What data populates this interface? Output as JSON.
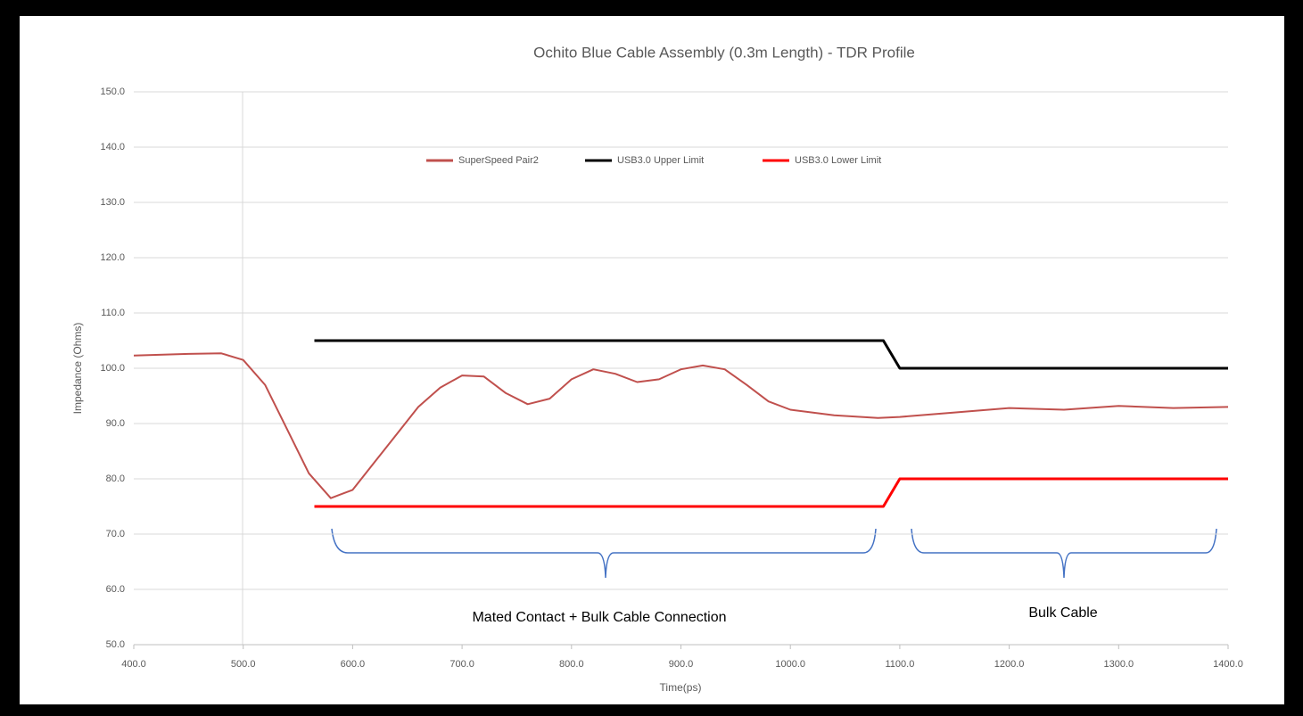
{
  "chart_data": {
    "type": "line",
    "title": "Ochito Blue Cable Assembly (0.3m Length) - TDR Profile",
    "xlabel": "Time(ps)",
    "ylabel": "Impedance (Ohms)",
    "xlim": [
      400,
      1400
    ],
    "ylim": [
      50,
      150
    ],
    "xticks": [
      {
        "value": 400,
        "label": "400.0"
      },
      {
        "value": 500,
        "label": "500.0"
      },
      {
        "value": 600,
        "label": "600.0"
      },
      {
        "value": 700,
        "label": "700.0"
      },
      {
        "value": 800,
        "label": "800.0"
      },
      {
        "value": 900,
        "label": "900.0"
      },
      {
        "value": 1000,
        "label": "1000.0"
      },
      {
        "value": 1100,
        "label": "1100.0"
      },
      {
        "value": 1200,
        "label": "1200.0"
      },
      {
        "value": 1300,
        "label": "1300.0"
      },
      {
        "value": 1400,
        "label": "1400.0"
      }
    ],
    "yticks": [
      {
        "value": 50,
        "label": "50.0"
      },
      {
        "value": 60,
        "label": "60.0"
      },
      {
        "value": 70,
        "label": "70.0"
      },
      {
        "value": 80,
        "label": "80.0"
      },
      {
        "value": 90,
        "label": "90.0"
      },
      {
        "value": 100,
        "label": "100.0"
      },
      {
        "value": 110,
        "label": "110.0"
      },
      {
        "value": 120,
        "label": "120.0"
      },
      {
        "value": 130,
        "label": "130.0"
      },
      {
        "value": 140,
        "label": "140.0"
      },
      {
        "value": 150,
        "label": "150.0"
      }
    ],
    "grid": true,
    "legend": "top",
    "series": [
      {
        "name": "SuperSpeed Pair2",
        "color": "#c0504d",
        "x": [
          400,
          450,
          480,
          500,
          520,
          540,
          560,
          580,
          600,
          620,
          640,
          660,
          680,
          700,
          720,
          740,
          760,
          780,
          800,
          820,
          840,
          860,
          880,
          900,
          920,
          940,
          960,
          980,
          1000,
          1040,
          1080,
          1100,
          1150,
          1200,
          1250,
          1300,
          1350,
          1400
        ],
        "values": [
          102.3,
          102.6,
          102.7,
          101.5,
          97,
          89,
          81,
          76.5,
          78,
          83,
          88,
          93,
          96.5,
          98.7,
          98.5,
          95.5,
          93.5,
          94.5,
          98,
          99.8,
          99,
          97.5,
          98,
          99.8,
          100.5,
          99.8,
          97,
          94,
          92.5,
          91.5,
          91,
          91.2,
          92,
          92.8,
          92.5,
          93.2,
          92.8,
          93
        ]
      },
      {
        "name": "USB3.0 Upper Limit",
        "color": "#000000",
        "x": [
          565,
          1085,
          1100,
          1400
        ],
        "values": [
          105,
          105,
          100,
          100
        ]
      },
      {
        "name": "USB3.0 Lower Limit",
        "color": "#ff0000",
        "x": [
          565,
          1085,
          1100,
          1400
        ],
        "values": [
          75,
          75,
          80,
          80
        ]
      }
    ],
    "annotations": [
      "Mated Contact + Bulk Cable Connection",
      "Bulk Cable"
    ]
  }
}
